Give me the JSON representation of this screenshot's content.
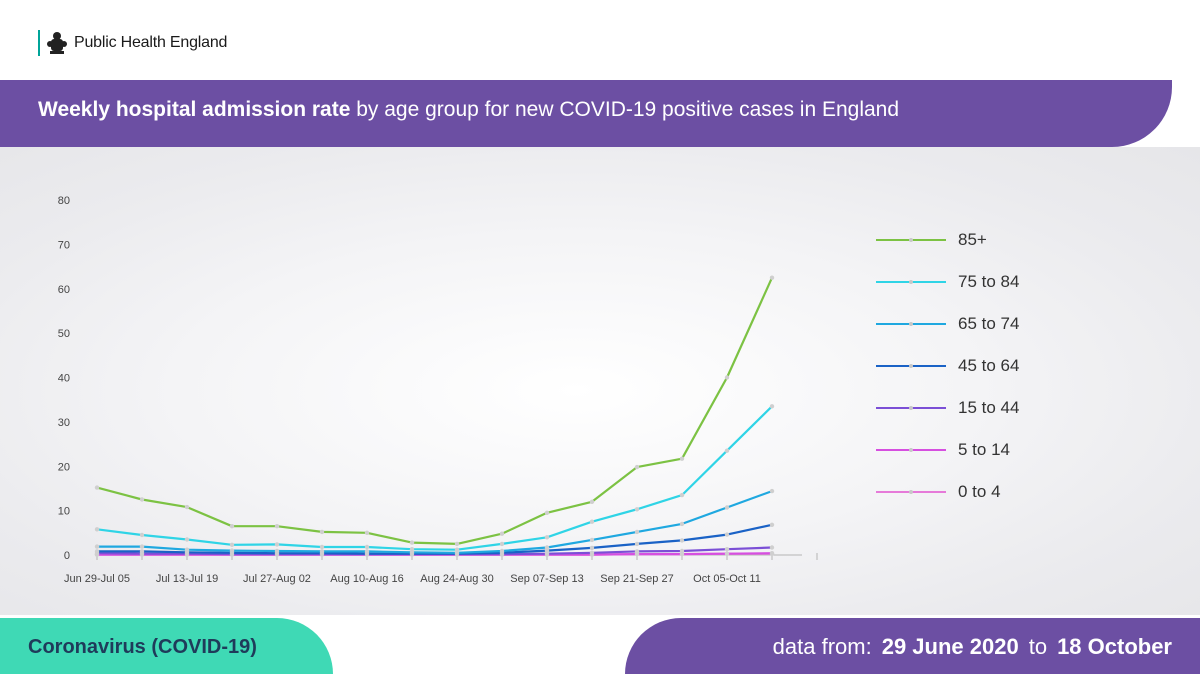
{
  "header": {
    "org_name": "Public Health England"
  },
  "banner": {
    "title_bold": "Weekly hospital admission rate",
    "title_rest": " by age group for new COVID-19 positive cases in England"
  },
  "footer": {
    "left_label": "Coronavirus (COVID-19)",
    "prefix": "data from:",
    "start_date": "29 June 2020",
    "connector": "to",
    "end_date": "18 October"
  },
  "colors": {
    "banner_purple": "#6c4fa3",
    "footer_teal": "#3fd9b5",
    "footer_text_navy": "#1f3b5a",
    "brand_teal_bar": "#00a499"
  },
  "chart_data": {
    "type": "line",
    "title": "Weekly hospital admission rate by age group for new COVID-19 positive cases in England",
    "xlabel": "",
    "ylabel": "",
    "ylim": [
      0,
      80
    ],
    "yticks": [
      0,
      10,
      20,
      30,
      40,
      50,
      60,
      70,
      80
    ],
    "grid": false,
    "legend_position": "right",
    "x": [
      "Jun 29-Jul 05",
      "Jul 06-Jul 12",
      "Jul 13-Jul 19",
      "Jul 20-Jul 26",
      "Jul 27-Aug 02",
      "Aug 03-Aug 09",
      "Aug 10-Aug 16",
      "Aug 17-Aug 23",
      "Aug 24-Aug 30",
      "Aug 31-Sep 06",
      "Sep 07-Sep 13",
      "Sep 14-Sep 20",
      "Sep 21-Sep 27",
      "Sep 28-Oct 04",
      "Oct 05-Oct 11",
      "Oct 12-Oct 18"
    ],
    "x_tick_labels": [
      "Jun 29-Jul 05",
      "",
      "Jul 13-Jul 19",
      "",
      "Jul 27-Aug 02",
      "",
      "Aug 10-Aug 16",
      "",
      "Aug 24-Aug 30",
      "",
      "Sep 07-Sep 13",
      "",
      "Sep 21-Sep 27",
      "",
      "Oct 05-Oct 11",
      ""
    ],
    "series": [
      {
        "name": "85+",
        "color": "#7cc243",
        "values": [
          15.2,
          12.5,
          10.8,
          6.5,
          6.5,
          5.2,
          5.0,
          2.8,
          2.5,
          4.8,
          9.5,
          12.0,
          19.8,
          21.7,
          40.0,
          62.5
        ]
      },
      {
        "name": "75 to 84",
        "color": "#2fd4e6",
        "values": [
          5.8,
          4.5,
          3.5,
          2.3,
          2.4,
          1.8,
          1.8,
          1.3,
          1.2,
          2.5,
          4.0,
          7.5,
          10.3,
          13.5,
          23.5,
          33.5
        ]
      },
      {
        "name": "65 to 74",
        "color": "#1fa8e0",
        "values": [
          1.9,
          1.9,
          1.2,
          1.0,
          0.9,
          0.8,
          0.8,
          0.6,
          0.5,
          0.9,
          1.7,
          3.4,
          5.2,
          7.0,
          10.7,
          14.4
        ]
      },
      {
        "name": "45 to 64",
        "color": "#1a62c6",
        "values": [
          0.8,
          0.8,
          0.6,
          0.5,
          0.4,
          0.4,
          0.3,
          0.3,
          0.3,
          0.5,
          1.0,
          1.6,
          2.5,
          3.3,
          4.6,
          6.8
        ]
      },
      {
        "name": "15 to 44",
        "color": "#7b4fd6",
        "values": [
          0.4,
          0.3,
          0.3,
          0.2,
          0.2,
          0.2,
          0.2,
          0.2,
          0.2,
          0.2,
          0.3,
          0.5,
          0.8,
          0.9,
          1.3,
          1.7
        ]
      },
      {
        "name": "5 to 14",
        "color": "#d64fe0",
        "values": [
          0.1,
          0.1,
          0.1,
          0.1,
          0.1,
          0.1,
          0.1,
          0.1,
          0.1,
          0.1,
          0.1,
          0.1,
          0.2,
          0.2,
          0.3,
          0.4
        ]
      },
      {
        "name": "0 to 4",
        "color": "#e67ad9",
        "values": [
          0.1,
          0.1,
          0.1,
          0.1,
          0.1,
          0.1,
          0.1,
          0.1,
          0.1,
          0.1,
          0.1,
          0.1,
          0.2,
          0.2,
          0.3,
          0.3
        ]
      }
    ]
  }
}
